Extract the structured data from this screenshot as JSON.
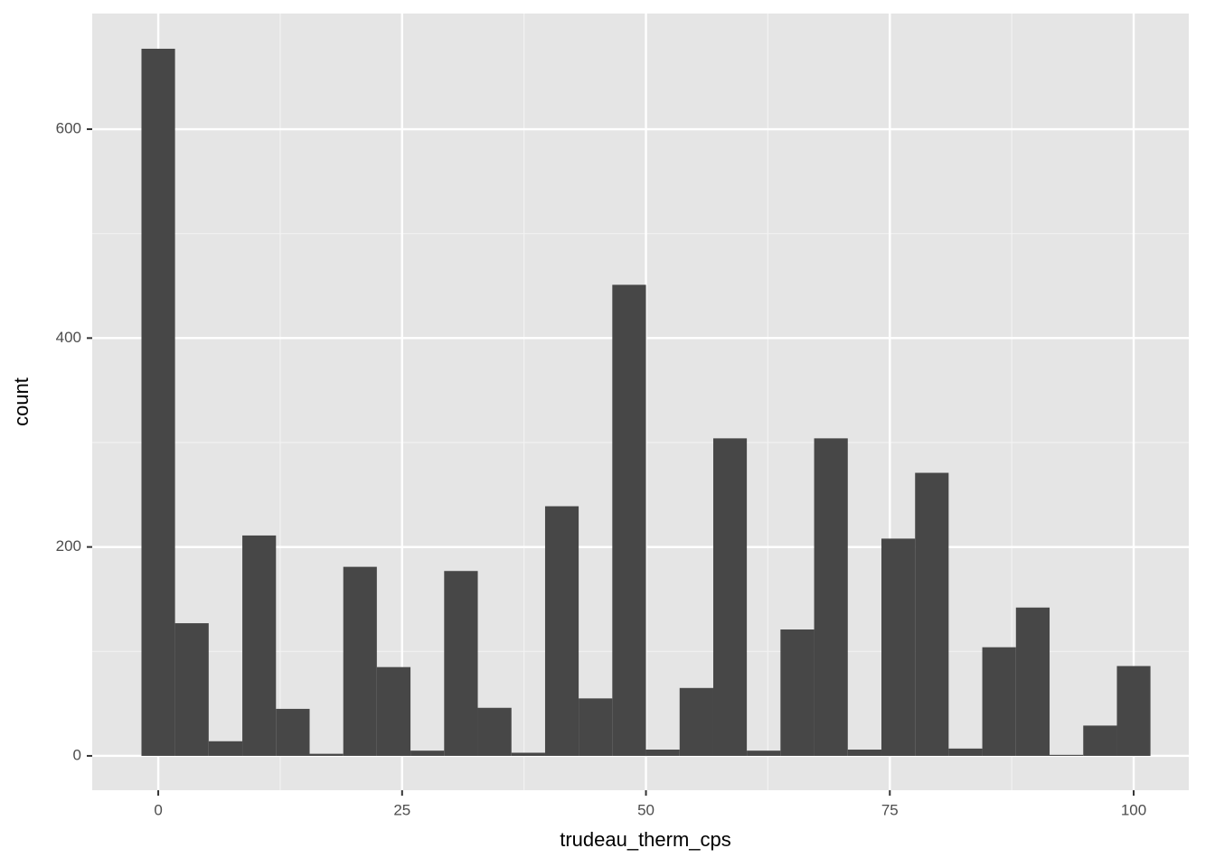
{
  "chart_data": {
    "type": "histogram",
    "x_label": "trudeau_therm_cps",
    "y_label": "count",
    "bins": [
      -1.72,
      1.72,
      5.17,
      8.62,
      12.07,
      15.52,
      18.97,
      22.41,
      25.86,
      29.31,
      32.76,
      36.21,
      39.66,
      43.1,
      46.55,
      50.0,
      53.45,
      56.9,
      60.34,
      63.79,
      67.24,
      70.69,
      74.14,
      77.59,
      81.03,
      84.48,
      87.93,
      91.38,
      94.83,
      98.28,
      101.72
    ],
    "values": [
      677,
      127,
      14,
      211,
      45,
      2,
      181,
      85,
      5,
      177,
      46,
      3,
      239,
      55,
      451,
      6,
      65,
      304,
      5,
      121,
      304,
      6,
      208,
      271,
      7,
      104,
      142,
      1,
      29,
      86
    ],
    "color": "#474747",
    "xlim": [
      -6.77,
      105.65
    ],
    "ylim": [
      -32.9,
      710.7
    ],
    "xticks": [
      0,
      25,
      50,
      75,
      100
    ],
    "yticks": [
      0,
      200,
      400,
      600
    ],
    "x_minor_ticks": [
      12.5,
      37.5,
      62.5,
      87.5
    ],
    "y_minor_ticks": [
      100,
      300,
      500
    ],
    "grid": true
  }
}
